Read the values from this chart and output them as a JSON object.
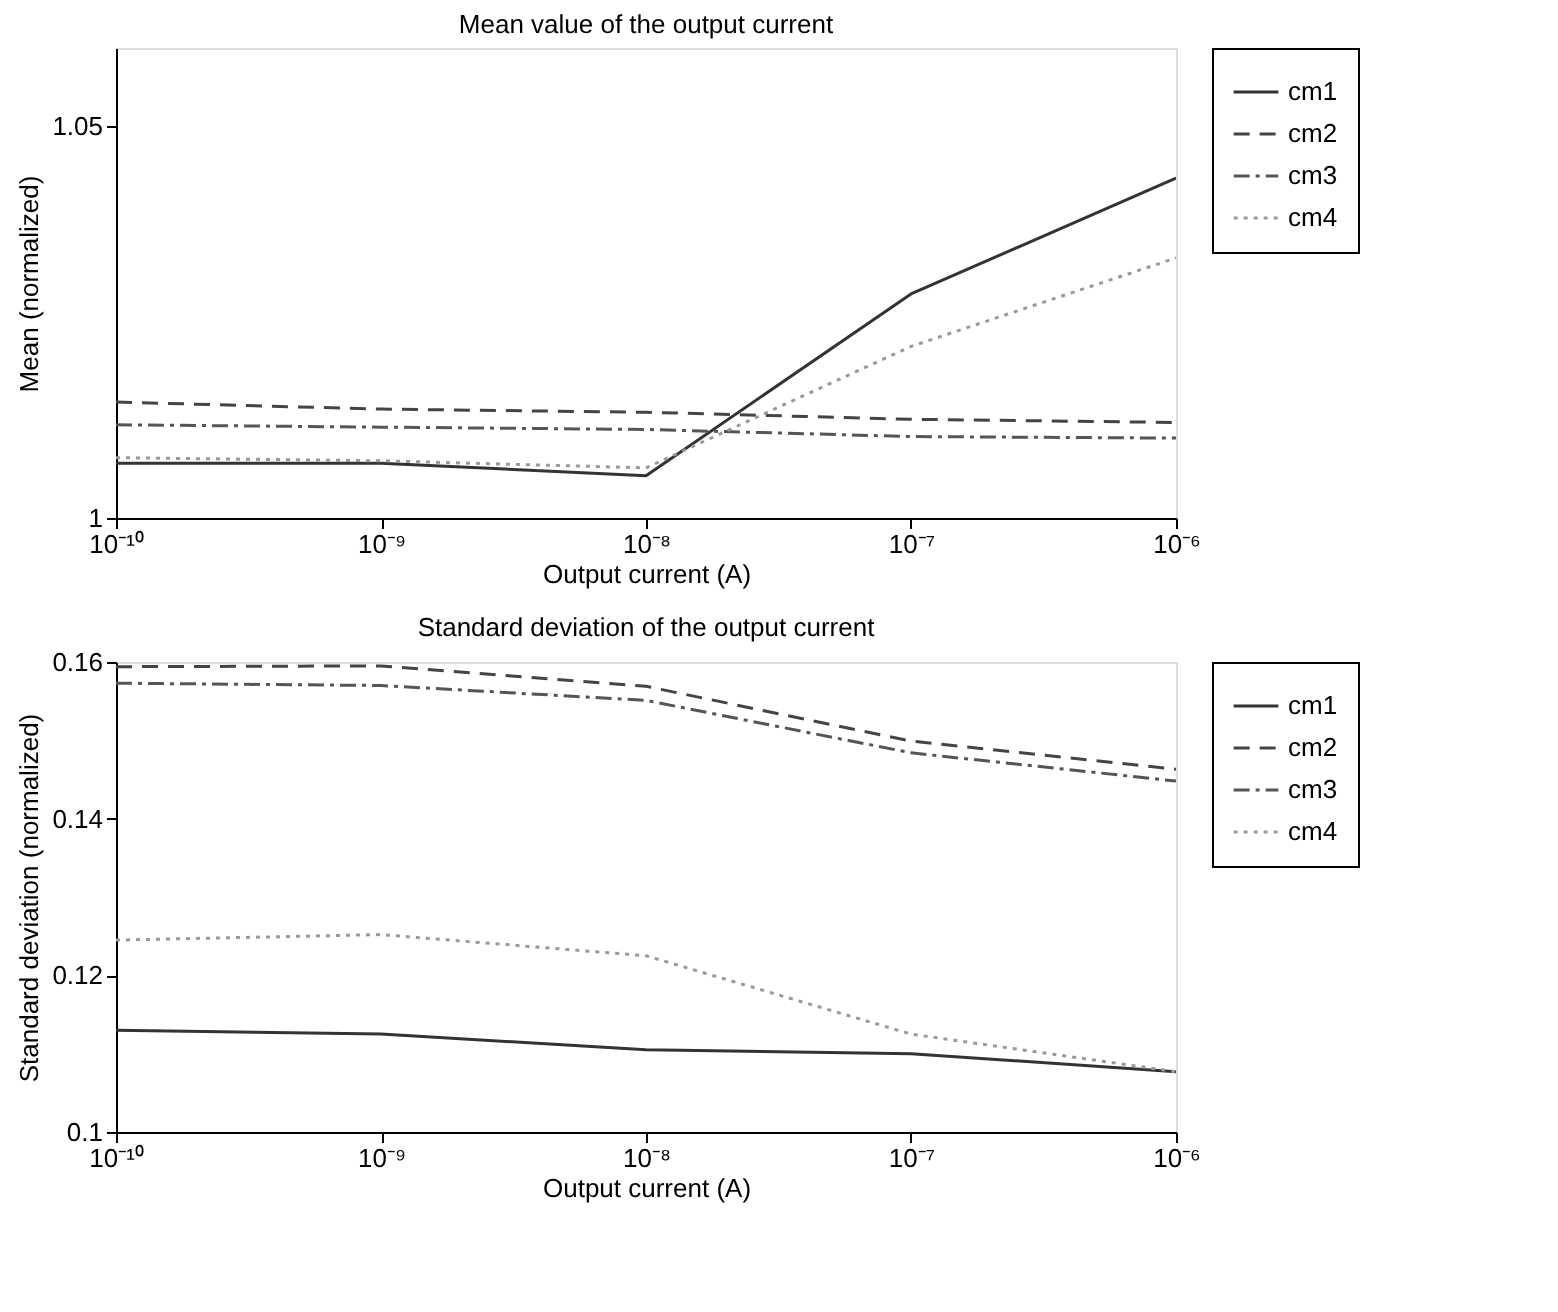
{
  "chart_data": [
    {
      "type": "line",
      "title": "Mean value of the output current",
      "xlabel": "Output current (A)",
      "ylabel": "Mean (normalized)",
      "x": [
        1e-10,
        1e-09,
        1e-08,
        1e-07,
        1e-06
      ],
      "log": "x",
      "grid": false,
      "legend": "right",
      "xlim": [
        1e-10,
        1e-06
      ],
      "xticks": [
        {
          "value": 1e-10,
          "label": "10⁻¹⁰"
        },
        {
          "value": 1e-09,
          "label": "10⁻⁹"
        },
        {
          "value": 1e-08,
          "label": "10⁻⁸"
        },
        {
          "value": 1e-07,
          "label": "10⁻⁷"
        },
        {
          "value": 1e-06,
          "label": "10⁻⁶"
        }
      ],
      "ylim": [
        1,
        1.06
      ],
      "yticks": [
        1,
        1.05
      ],
      "series": [
        {
          "name": "cm1",
          "color": "#333333",
          "line_style": "solid",
          "values": [
            1.007,
            1.007,
            1.0054,
            1.0286,
            1.0434
          ]
        },
        {
          "name": "cm2",
          "color": "#444444",
          "line_style": "dashed",
          "values": [
            1.0148,
            1.0139,
            1.0135,
            1.0126,
            1.0122
          ]
        },
        {
          "name": "cm3",
          "color": "#555555",
          "line_style": "dashdot",
          "values": [
            1.0119,
            1.0116,
            1.0113,
            1.0104,
            1.0102
          ]
        },
        {
          "name": "cm4",
          "color": "#999999",
          "line_style": "dotted",
          "values": [
            1.0077,
            1.0073,
            1.0064,
            1.0219,
            1.0332
          ]
        }
      ]
    },
    {
      "type": "line",
      "title": "Standard deviation of the output current",
      "xlabel": "Output current (A)",
      "ylabel": "Standard deviation (normalized)",
      "x": [
        1e-10,
        1e-09,
        1e-08,
        1e-07,
        1e-06
      ],
      "log": "x",
      "grid": false,
      "legend": "right",
      "xlim": [
        1e-10,
        1e-06
      ],
      "xticks": [
        {
          "value": 1e-10,
          "label": "10⁻¹⁰"
        },
        {
          "value": 1e-09,
          "label": "10⁻⁹"
        },
        {
          "value": 1e-08,
          "label": "10⁻⁸"
        },
        {
          "value": 1e-07,
          "label": "10⁻⁷"
        },
        {
          "value": 1e-06,
          "label": "10⁻⁶"
        }
      ],
      "ylim": [
        0.1,
        0.16
      ],
      "yticks": [
        0.1,
        0.12,
        0.14,
        0.16
      ],
      "series": [
        {
          "name": "cm1",
          "color": "#333333",
          "line_style": "solid",
          "values": [
            0.113,
            0.1125,
            0.1105,
            0.11,
            0.1077
          ]
        },
        {
          "name": "cm2",
          "color": "#444444",
          "line_style": "dashed",
          "values": [
            0.1594,
            0.1595,
            0.1569,
            0.1499,
            0.1463
          ]
        },
        {
          "name": "cm3",
          "color": "#555555",
          "line_style": "dashdot",
          "values": [
            0.1573,
            0.157,
            0.1551,
            0.1484,
            0.1448
          ]
        },
        {
          "name": "cm4",
          "color": "#999999",
          "line_style": "dotted",
          "values": [
            0.1245,
            0.1252,
            0.1225,
            0.1125,
            0.1077
          ]
        }
      ]
    }
  ]
}
